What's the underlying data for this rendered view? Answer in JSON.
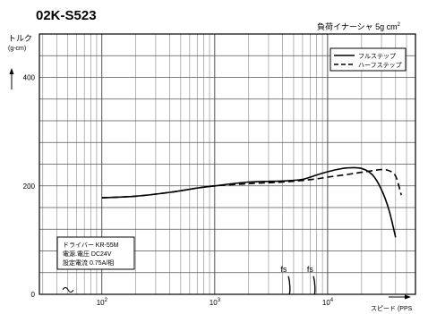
{
  "header": {
    "model": "02K-S523",
    "inertia_label": "負荷イナーシャ 5g cm"
  },
  "info_box": {
    "lines": [
      "ドライバー KR-55M",
      "電源.電圧 DC24V",
      "設定電流 0.75A/相"
    ]
  },
  "chart_data": {
    "type": "line",
    "title": "02K-S523",
    "subtitle": "負荷イナーシャ 5g cm²",
    "ylabel": "トルク",
    "ylabel_unit": "(g-cm)",
    "xlabel": "スピード (PPS",
    "xscale": "log",
    "xlim": [
      28,
      60000
    ],
    "ylim": [
      0,
      480
    ],
    "yticks": [
      0,
      200,
      400
    ],
    "xticks": [
      100,
      1000,
      10000
    ],
    "xtick_labels": [
      {
        "base": "10",
        "exp": "2"
      },
      {
        "base": "10",
        "exp": "3"
      },
      {
        "base": "10",
        "exp": "4"
      }
    ],
    "grid": true,
    "legend_position": "top-right",
    "series": [
      {
        "name": "フルステップ",
        "style": "solid",
        "color": "#000000",
        "x": [
          100,
          200,
          400,
          700,
          1000,
          2000,
          4000,
          6000,
          8000,
          10000,
          12000,
          15000,
          20000,
          25000,
          30000,
          35000,
          40000
        ],
        "y": [
          178,
          181,
          188,
          196,
          200,
          207,
          209,
          212,
          220,
          226,
          230,
          233,
          232,
          220,
          193,
          155,
          105
        ]
      },
      {
        "name": "ハーフステップ",
        "style": "dashed",
        "color": "#000000",
        "x": [
          100,
          200,
          400,
          700,
          1000,
          2000,
          4000,
          6000,
          8000,
          10000,
          15000,
          20000,
          25000,
          30000,
          35000,
          40000,
          45000
        ],
        "y": [
          178,
          181,
          188,
          196,
          200,
          204,
          207,
          210,
          213,
          216,
          221,
          225,
          228,
          230,
          228,
          218,
          183
        ]
      }
    ],
    "annotations": [
      {
        "text": "fs",
        "x": 4200
      },
      {
        "text": "fs",
        "x": 7200
      }
    ],
    "annotation_curve_x": [
      4500,
      7500
    ],
    "annotation_curve_y": [
      40,
      40
    ]
  }
}
